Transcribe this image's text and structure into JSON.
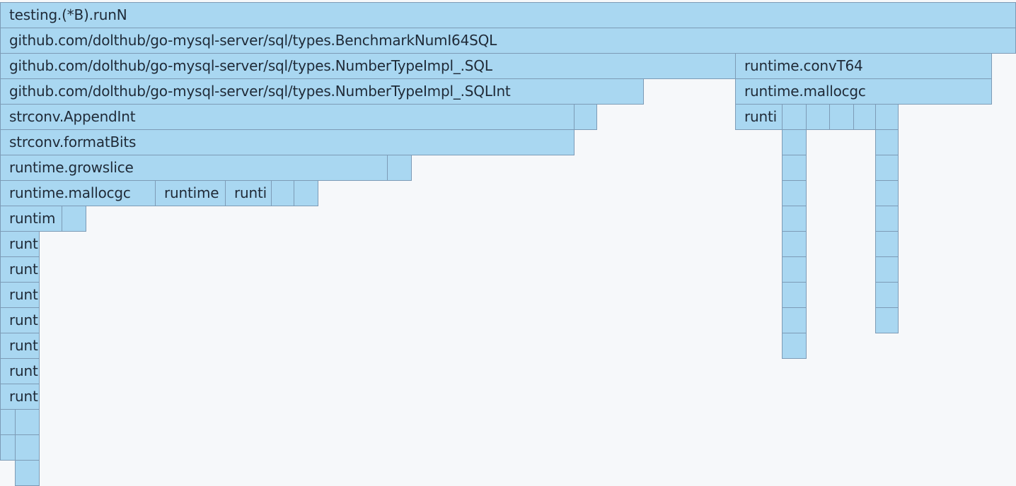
{
  "flamegraph": {
    "frames": [
      "testing.(*B).runN",
      "github.com/dolthub/go-mysql-server/sql/types.BenchmarkNumI64SQL",
      "github.com/dolthub/go-mysql-server/sql/types.NumberTypeImpl_.SQL",
      "runtime.convT64",
      "github.com/dolthub/go-mysql-server/sql/types.NumberTypeImpl_.SQLInt",
      "runtime.mallocgc",
      "strconv.AppendInt",
      "runti",
      "strconv.formatBits",
      "runtime.growslice",
      "runtime.mallocgc",
      "runtime",
      "runti",
      "runtim",
      "runt",
      "runt",
      "runt",
      "runt",
      "runt",
      "runt",
      "runt"
    ],
    "colors": {
      "frame_fill": "#a9d7f1",
      "frame_border": "#7d9bb6",
      "text": "#1f2a37",
      "background": "#f6f8fa"
    }
  }
}
